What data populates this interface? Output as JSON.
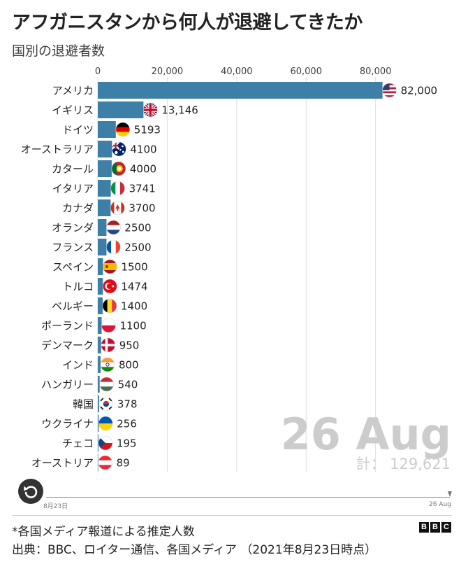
{
  "header": {
    "title": "アフガニスタンから何人が退避してきたか",
    "subtitle": "国別の退避者数"
  },
  "chart_data": {
    "type": "bar",
    "orientation": "horizontal",
    "title": "アフガニスタンから何人が退避してきたか",
    "subtitle": "国別の退避者数",
    "xlim": [
      0,
      85000
    ],
    "x_ticks": [
      0,
      20000,
      40000,
      60000,
      80000
    ],
    "x_tick_labels": [
      "0",
      "20,000",
      "40,000",
      "60,000",
      "80,000"
    ],
    "grid": true,
    "bar_color": "#3d7fa6",
    "categories": [
      "アメリカ",
      "イギリス",
      "ドイツ",
      "オーストラリア",
      "カタール",
      "イタリア",
      "カナダ",
      "オランダ",
      "フランス",
      "スペイン",
      "トルコ",
      "ベルギー",
      "ポーランド",
      "デンマーク",
      "インド",
      "ハンガリー",
      "韓国",
      "ウクライナ",
      "チェコ",
      "オーストリア"
    ],
    "values": [
      82000,
      13146,
      5193,
      4100,
      4000,
      3741,
      3700,
      2500,
      2500,
      1500,
      1474,
      1400,
      1100,
      950,
      800,
      540,
      378,
      256,
      195,
      89
    ],
    "value_labels": [
      "82,000",
      "13,146",
      "5193",
      "4100",
      "4000",
      "3741",
      "3700",
      "2500",
      "2500",
      "1500",
      "1474",
      "1400",
      "1100",
      "950",
      "800",
      "540",
      "378",
      "256",
      "195",
      "89"
    ],
    "flags": [
      "us",
      "uk",
      "de",
      "au",
      "qa",
      "it",
      "ca",
      "nl",
      "fr",
      "es",
      "tr",
      "be",
      "pl",
      "dk",
      "in",
      "hu",
      "kr",
      "ua",
      "cz",
      "at"
    ],
    "date_label": "26 Aug",
    "total_label": "計： 129,621"
  },
  "timeline": {
    "start_label": "8月23日",
    "end_label": "26 Aug",
    "progress": 1.0
  },
  "replay_icon": "replay-icon",
  "footer": {
    "footnote": "*各国メディア報道による推定人数",
    "source": "出典：BBC、ロイター通信、各国メディア （2021年8月23日時点）",
    "logo_letters": [
      "B",
      "B",
      "C"
    ]
  }
}
